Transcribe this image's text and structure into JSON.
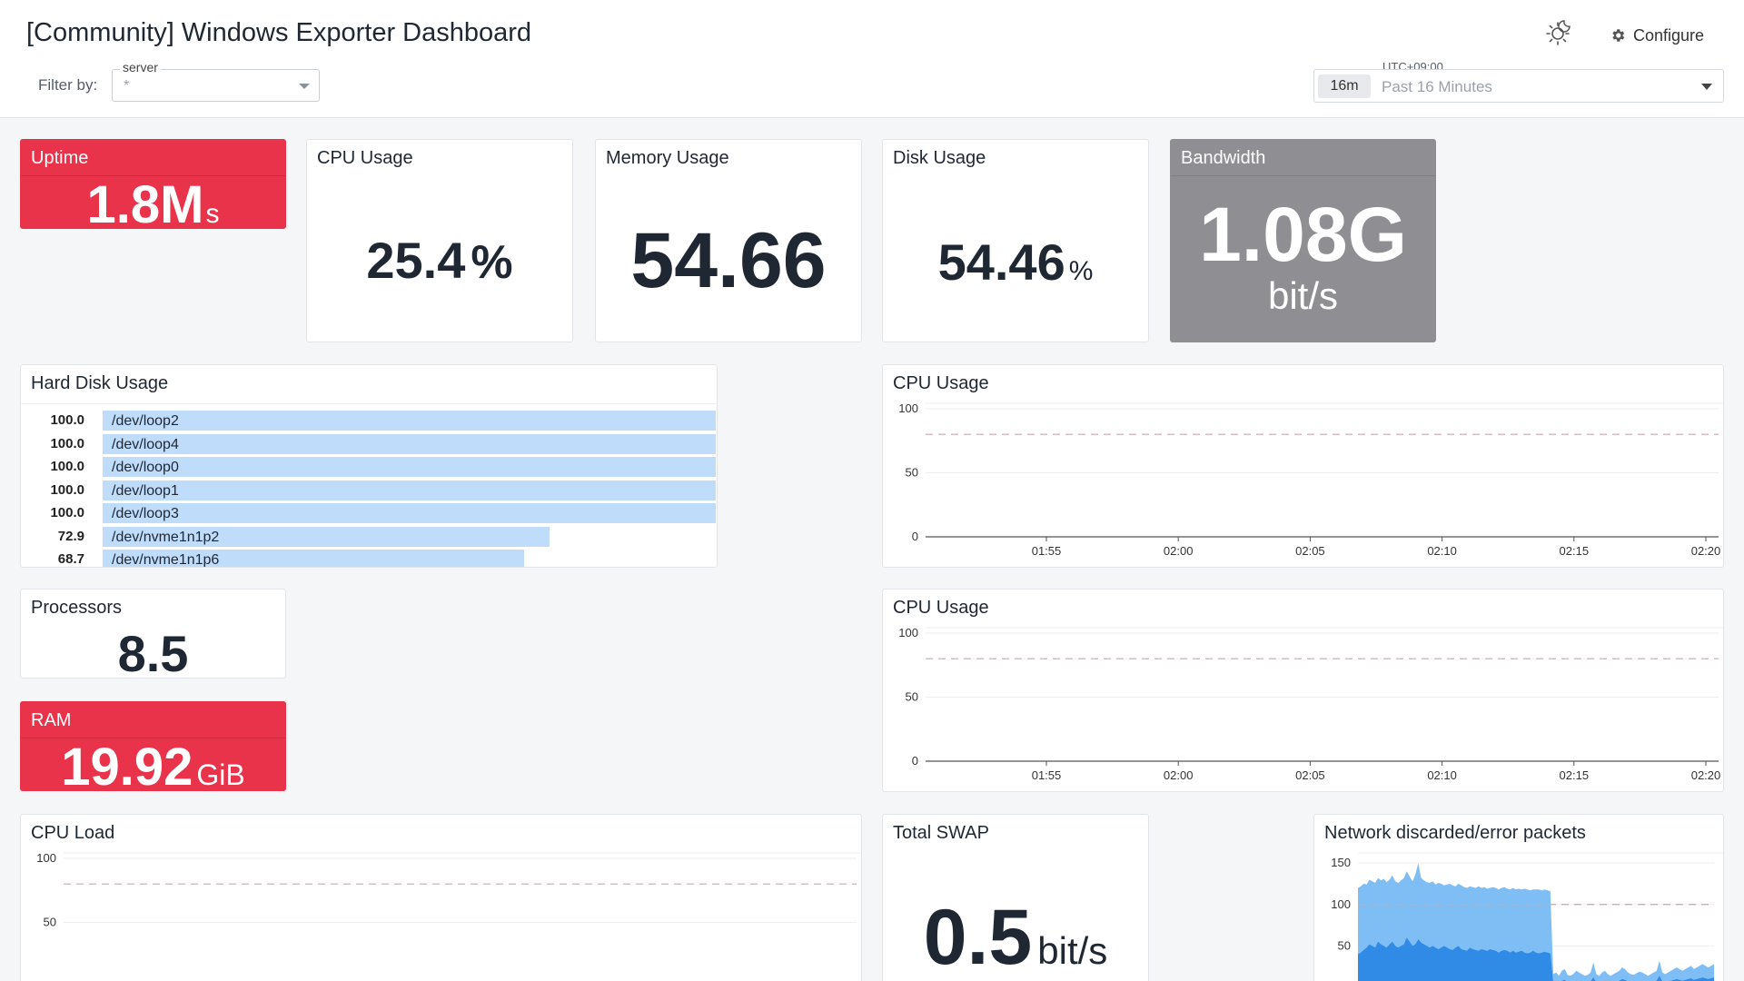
{
  "header": {
    "title": "[Community] Windows Exporter Dashboard",
    "filter_label": "Filter by:",
    "filter": {
      "label": "server",
      "value": "*"
    },
    "timezone": "UTC+09:00",
    "time_chip": "16m",
    "time_range": "Past 16 Minutes",
    "configure_label": "Configure"
  },
  "widgets": {
    "uptime": {
      "title": "Uptime",
      "value": "1.8M",
      "unit": "s",
      "color": "#e8334a"
    },
    "cpu_usage_value": {
      "title": "CPU Usage",
      "value": "25.4",
      "unit": "%"
    },
    "memory_usage": {
      "title": "Memory Usage",
      "value": "54.66"
    },
    "disk_usage": {
      "title": "Disk Usage",
      "value": "54.46",
      "unit": "%"
    },
    "bandwidth": {
      "title": "Bandwidth",
      "value": "1.08G",
      "unit": "bit/s",
      "color": "#8e8e93"
    },
    "processors": {
      "title": "Processors",
      "value": "8.5"
    },
    "ram": {
      "title": "RAM",
      "value": "19.92",
      "unit": "GiB",
      "color": "#e8334a"
    },
    "total_swap": {
      "title": "Total SWAP",
      "value": "0.5",
      "unit": "bit/s"
    }
  },
  "hard_disk": {
    "title": "Hard Disk Usage",
    "rows": [
      {
        "value": "100.0",
        "name": "/dev/loop2",
        "pct": 1.0
      },
      {
        "value": "100.0",
        "name": "/dev/loop4",
        "pct": 1.0
      },
      {
        "value": "100.0",
        "name": "/dev/loop0",
        "pct": 1.0
      },
      {
        "value": "100.0",
        "name": "/dev/loop1",
        "pct": 1.0
      },
      {
        "value": "100.0",
        "name": "/dev/loop3",
        "pct": 1.0
      },
      {
        "value": "72.9",
        "name": "/dev/nvme1n1p2",
        "pct": 0.729
      },
      {
        "value": "68.7",
        "name": "/dev/nvme1n1p6",
        "pct": 0.687
      }
    ]
  },
  "chart_data": [
    {
      "type": "line",
      "title": "CPU Usage",
      "x": [
        "01:55",
        "02:00",
        "02:05",
        "02:10",
        "02:15",
        "02:20"
      ],
      "yticks": [
        0,
        50,
        100
      ],
      "ylim": [
        0,
        100
      ],
      "threshold": 80,
      "series": []
    },
    {
      "type": "line",
      "title": "CPU Usage",
      "x": [
        "01:55",
        "02:00",
        "02:05",
        "02:10",
        "02:15",
        "02:20"
      ],
      "yticks": [
        0,
        50,
        100
      ],
      "ylim": [
        0,
        100
      ],
      "threshold": 80,
      "series": []
    },
    {
      "type": "line",
      "title": "CPU Load",
      "yticks": [
        50,
        100
      ],
      "ylim": [
        0,
        100
      ],
      "threshold": 80,
      "series": []
    },
    {
      "type": "area",
      "title": "Network discarded/error packets",
      "yticks": [
        50,
        100,
        150
      ],
      "ylim": [
        0,
        160
      ],
      "threshold": 100,
      "series": [
        {
          "color": "#7fbef5",
          "values": [
            120,
            122,
            125,
            124,
            130,
            128,
            126,
            132,
            129,
            131,
            127,
            130,
            135,
            128,
            126,
            129,
            132,
            140,
            134,
            128,
            136,
            150,
            132,
            129,
            127,
            126,
            128,
            124,
            126,
            125,
            123,
            124,
            125,
            123,
            122,
            125,
            123,
            121,
            120,
            122,
            121,
            120,
            122,
            120,
            121,
            119,
            120,
            121,
            120,
            118,
            120,
            121,
            119,
            118,
            120,
            118,
            119,
            118,
            119,
            118,
            117,
            118,
            118,
            118,
            117,
            118,
            117,
            116,
            16,
            18,
            14,
            20,
            22,
            15,
            14,
            16,
            20,
            18,
            16,
            14,
            15,
            18,
            30,
            16,
            14,
            18,
            20,
            16,
            14,
            16,
            18,
            20,
            24,
            22,
            18,
            16,
            15,
            17,
            19,
            18,
            16,
            14,
            16,
            18,
            20,
            32,
            18,
            16,
            18,
            20,
            22,
            24,
            22,
            20,
            22,
            24,
            26,
            22,
            24,
            26,
            28,
            26,
            24,
            26,
            28
          ]
        },
        {
          "color": "#2f8be6",
          "values": [
            40,
            42,
            45,
            48,
            52,
            50,
            48,
            55,
            52,
            50,
            48,
            52,
            55,
            50,
            48,
            50,
            52,
            60,
            55,
            50,
            52,
            58,
            54,
            52,
            50,
            48,
            50,
            48,
            46,
            48,
            50,
            48,
            46,
            45,
            48,
            50,
            46,
            45,
            44,
            48,
            46,
            45,
            44,
            46,
            45,
            44,
            46,
            45,
            44,
            42,
            44,
            45,
            44,
            42,
            44,
            42,
            43,
            44,
            42,
            41,
            42,
            44,
            42,
            41,
            42,
            43,
            42,
            41,
            6,
            7,
            5,
            8,
            9,
            6,
            5,
            6,
            8,
            7,
            6,
            5,
            6,
            7,
            12,
            6,
            5,
            7,
            8,
            6,
            5,
            6,
            7,
            8,
            10,
            9,
            7,
            6,
            5,
            6,
            7,
            7,
            6,
            5,
            6,
            7,
            8,
            14,
            7,
            6,
            7,
            8,
            9,
            10,
            9,
            8,
            9,
            10,
            11,
            9,
            10,
            11,
            12,
            11,
            10,
            11,
            12
          ]
        }
      ]
    }
  ]
}
